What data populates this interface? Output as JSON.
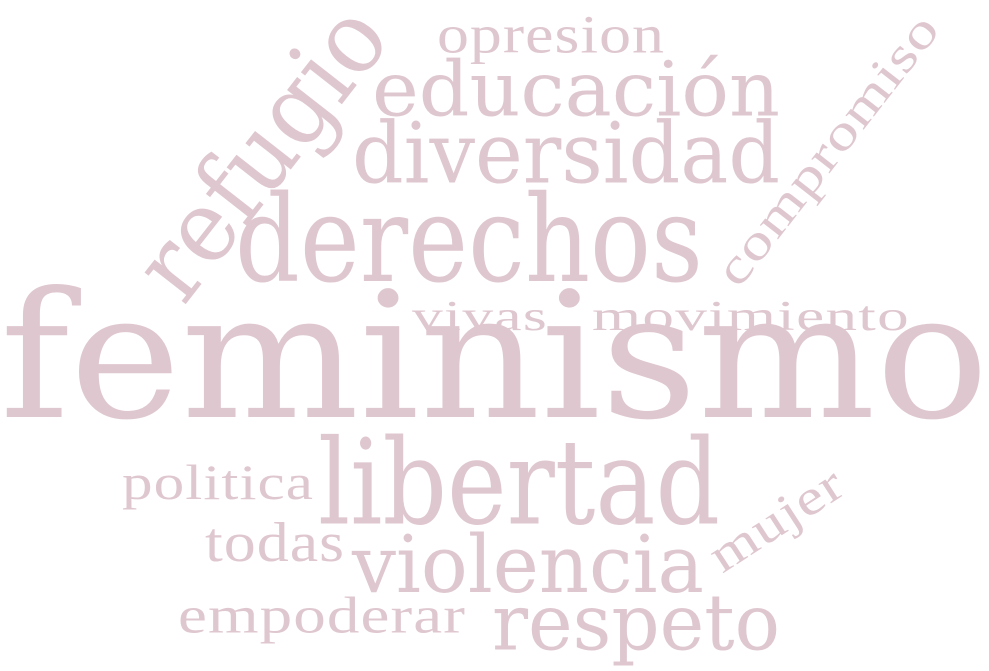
{
  "word_color": "#dfc7cf",
  "background_color": "#ffffff",
  "words": {
    "feminismo": "feminismo",
    "derechos": "derechos",
    "libertad": "libertad",
    "violencia": "violencia",
    "diversidad": "diversidad",
    "educacion": "educación",
    "refugio": "refugio",
    "respeto": "respeto",
    "opresion": "opresion",
    "compromiso": "compromiso",
    "vivas": "vivas",
    "movimiento": "movimiento",
    "politica": "politica",
    "todas": "todas",
    "mujer": "mujer",
    "empoderar": "empoderar"
  }
}
